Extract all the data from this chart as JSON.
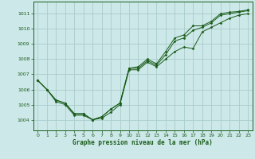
{
  "xlabel": "Graphe pression niveau de la mer (hPa)",
  "background_color": "#cce8e8",
  "grid_color": "#aacccc",
  "line_color": "#1a5c1a",
  "marker_color": "#1a5c1a",
  "xlim": [
    -0.5,
    23.5
  ],
  "ylim": [
    1003.3,
    1011.8
  ],
  "yticks": [
    1004,
    1005,
    1006,
    1007,
    1008,
    1009,
    1010,
    1011
  ],
  "xticks": [
    0,
    1,
    2,
    3,
    4,
    5,
    6,
    7,
    8,
    9,
    10,
    11,
    12,
    13,
    14,
    15,
    16,
    17,
    18,
    19,
    20,
    21,
    22,
    23
  ],
  "series": [
    [
      1006.6,
      1006.0,
      1005.2,
      1005.0,
      1004.3,
      1004.3,
      1004.0,
      1004.1,
      1004.5,
      1005.0,
      1007.3,
      1007.3,
      1007.8,
      1007.5,
      1008.0,
      1008.5,
      1008.8,
      1008.7,
      1009.8,
      1010.1,
      1010.4,
      1010.7,
      1010.9,
      1011.0
    ],
    [
      1006.6,
      1006.0,
      1005.3,
      1005.1,
      1004.4,
      1004.4,
      1004.0,
      1004.2,
      1004.7,
      1005.1,
      1007.4,
      1007.4,
      1007.9,
      1007.6,
      1008.3,
      1009.2,
      1009.4,
      1009.9,
      1010.1,
      1010.4,
      1010.9,
      1011.0,
      1011.1,
      1011.2
    ],
    [
      1006.6,
      1006.0,
      1005.3,
      1005.1,
      1004.4,
      1004.4,
      1004.0,
      1004.2,
      1004.7,
      1005.1,
      1007.4,
      1007.5,
      1008.0,
      1007.7,
      1008.5,
      1009.4,
      1009.6,
      1010.2,
      1010.2,
      1010.5,
      1011.0,
      1011.1,
      1011.15,
      1011.25
    ]
  ]
}
